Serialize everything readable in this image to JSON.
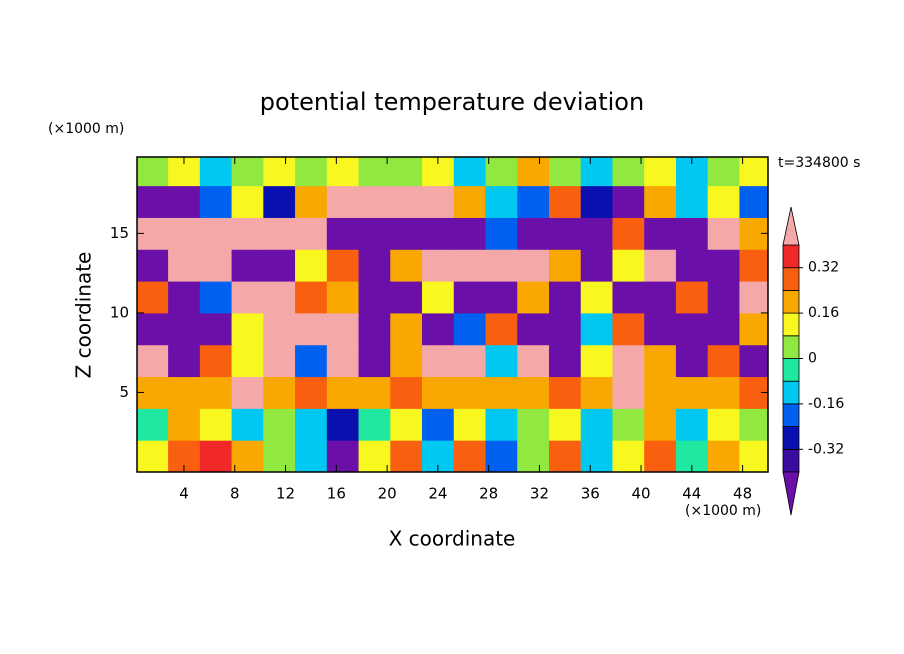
{
  "chart_data": {
    "type": "contour",
    "title": "potential temperature deviation",
    "xlabel": "X coordinate",
    "ylabel": "Z coordinate",
    "x_unit": "(×1000 m)",
    "y_unit": "(×1000 m)",
    "time_label": "t=334800 s",
    "xlim": [
      0.3,
      50
    ],
    "ylim": [
      0,
      19.8
    ],
    "xticks": [
      4,
      8,
      12,
      16,
      20,
      24,
      28,
      32,
      36,
      40,
      44,
      48
    ],
    "yticks": [
      5,
      10,
      15
    ],
    "levels": [
      -0.4,
      -0.32,
      -0.24,
      -0.16,
      -0.08,
      0,
      0.08,
      0.16,
      0.24,
      0.32,
      0.4
    ],
    "colors": [
      "#6a10a8",
      "#3c0ca0",
      "#0a10b0",
      "#0060f0",
      "#00c8f0",
      "#20e8a0",
      "#90e840",
      "#f8f820",
      "#f8a800",
      "#f86010",
      "#f02828",
      "#f4a8a8"
    ],
    "colorbar_ticks": [
      -0.32,
      -0.16,
      0,
      0.16,
      0.32
    ],
    "x": [
      1.5,
      4,
      6.5,
      9,
      11.5,
      14,
      16.5,
      19,
      21.5,
      24,
      26.5,
      29,
      31.5,
      34,
      36.5,
      39,
      41.5,
      44,
      46.5,
      49
    ],
    "y": [
      1,
      3,
      5,
      7,
      9,
      11,
      13,
      15,
      17,
      19
    ],
    "z": [
      [
        0.1,
        0.3,
        0.35,
        0.2,
        0.05,
        -0.1,
        -0.45,
        0.1,
        0.25,
        -0.1,
        0.3,
        -0.2,
        0.05,
        0.25,
        -0.1,
        0.1,
        0.3,
        -0.05,
        0.2,
        0.1
      ],
      [
        -0.05,
        0.2,
        0.15,
        -0.1,
        0.0,
        -0.15,
        -0.3,
        -0.05,
        0.1,
        -0.2,
        0.15,
        -0.1,
        0.05,
        0.1,
        -0.15,
        0.05,
        0.2,
        -0.1,
        0.1,
        0.05
      ],
      [
        0.2,
        0.22,
        0.2,
        0.45,
        0.2,
        0.25,
        0.2,
        0.22,
        0.3,
        0.2,
        0.22,
        0.18,
        0.2,
        0.25,
        0.2,
        0.45,
        0.2,
        0.22,
        0.2,
        0.25
      ],
      [
        0.45,
        -0.45,
        0.3,
        0.1,
        0.45,
        -0.2,
        0.45,
        -0.45,
        0.2,
        0.45,
        0.45,
        -0.1,
        0.45,
        -0.45,
        0.1,
        0.45,
        0.2,
        -0.45,
        0.3,
        -0.45
      ],
      [
        -0.45,
        -0.45,
        -0.45,
        0.1,
        0.45,
        0.45,
        0.45,
        -0.45,
        0.2,
        -0.45,
        -0.2,
        0.3,
        -0.45,
        -0.45,
        -0.1,
        0.3,
        -0.45,
        -0.45,
        -0.45,
        0.2
      ],
      [
        0.3,
        -0.45,
        -0.2,
        0.45,
        0.45,
        0.3,
        0.2,
        -0.45,
        -0.45,
        0.1,
        -0.45,
        -0.45,
        0.2,
        -0.45,
        0.1,
        -0.45,
        -0.45,
        0.3,
        -0.45,
        0.4
      ],
      [
        -0.45,
        0.45,
        0.45,
        -0.45,
        -0.45,
        0.1,
        0.3,
        -0.45,
        0.2,
        0.45,
        0.45,
        0.45,
        0.45,
        0.2,
        -0.45,
        0.1,
        0.45,
        -0.45,
        -0.45,
        0.3
      ],
      [
        0.45,
        0.45,
        0.45,
        0.45,
        0.45,
        0.45,
        -0.45,
        -0.45,
        -0.45,
        -0.45,
        -0.45,
        -0.2,
        -0.45,
        -0.45,
        -0.45,
        0.3,
        -0.45,
        -0.45,
        0.45,
        0.2
      ],
      [
        -0.45,
        -0.45,
        -0.2,
        0.1,
        -0.3,
        0.2,
        0.45,
        0.45,
        0.45,
        0.45,
        0.2,
        -0.1,
        -0.2,
        0.3,
        -0.3,
        -0.45,
        0.2,
        -0.15,
        0.1,
        -0.2
      ],
      [
        0.05,
        0.1,
        -0.1,
        0.05,
        0.1,
        0.05,
        0.1,
        0.02,
        0.05,
        0.1,
        -0.1,
        0.05,
        0.2,
        0.05,
        -0.1,
        0.05,
        0.1,
        -0.1,
        0.05,
        0.1
      ]
    ]
  }
}
